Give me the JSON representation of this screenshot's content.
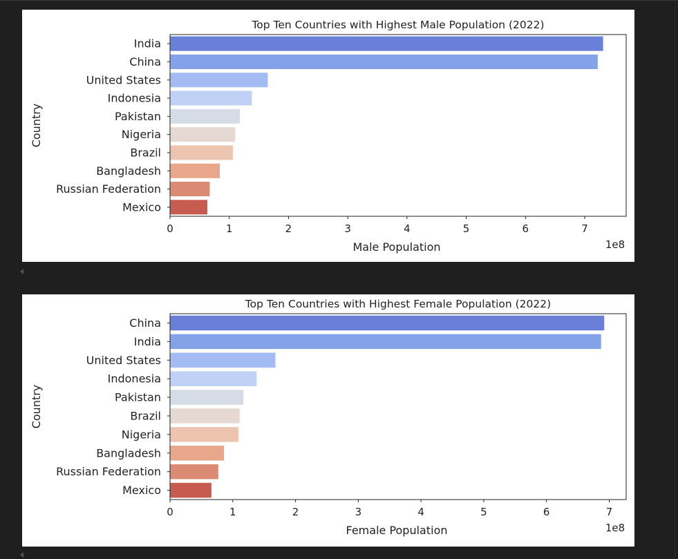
{
  "chart_data": [
    {
      "type": "bar",
      "orientation": "horizontal",
      "title": "Top Ten Countries with Highest Male Population (2022)",
      "xlabel": "Male Population",
      "ylabel": "Country",
      "offset_label": "1e8",
      "xlim": [
        0,
        7.7
      ],
      "xticks": [
        0,
        1,
        2,
        3,
        4,
        5,
        6,
        7
      ],
      "grid": false,
      "categories": [
        "India",
        "China",
        "United States",
        "Indonesia",
        "Pakistan",
        "Nigeria",
        "Brazil",
        "Bangladesh",
        "Russian Federation",
        "Mexico"
      ],
      "values": [
        7.31,
        7.22,
        1.65,
        1.38,
        1.18,
        1.1,
        1.06,
        0.84,
        0.67,
        0.63
      ],
      "colors": [
        "#6a80d8",
        "#84a2e8",
        "#a3bcf3",
        "#bfd2f5",
        "#d6dce6",
        "#e6d9d3",
        "#ecc4af",
        "#e8a68b",
        "#db8a74",
        "#c75b50"
      ]
    },
    {
      "type": "bar",
      "orientation": "horizontal",
      "title": "Top Ten Countries with Highest Female Population (2022)",
      "xlabel": "Female Population",
      "ylabel": "Country",
      "offset_label": "1e8",
      "xlim": [
        0,
        7.27
      ],
      "xticks": [
        0,
        1,
        2,
        3,
        4,
        5,
        6,
        7
      ],
      "grid": false,
      "categories": [
        "China",
        "India",
        "United States",
        "Indonesia",
        "Pakistan",
        "Brazil",
        "Nigeria",
        "Bangladesh",
        "Russian Federation",
        "Mexico"
      ],
      "values": [
        6.92,
        6.87,
        1.68,
        1.38,
        1.17,
        1.11,
        1.09,
        0.86,
        0.77,
        0.66
      ],
      "colors": [
        "#6a80d8",
        "#84a2e8",
        "#a3bcf3",
        "#bfd2f5",
        "#d6dce6",
        "#e6d9d3",
        "#ecc4af",
        "#e8a68b",
        "#db8a74",
        "#c75b50"
      ]
    }
  ]
}
